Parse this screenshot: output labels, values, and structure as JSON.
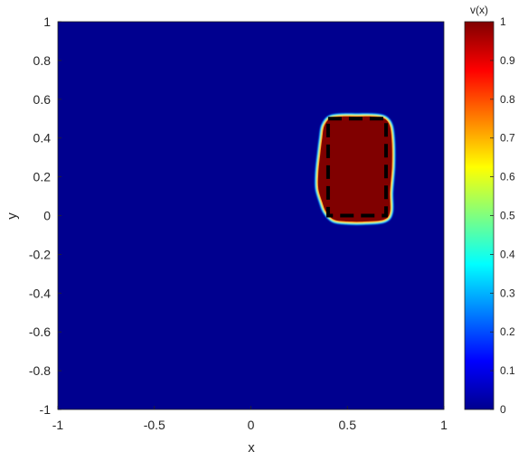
{
  "chart_data": {
    "type": "heatmap",
    "title": "",
    "xlabel": "x",
    "ylabel": "y",
    "xlim": [
      -1,
      1
    ],
    "ylim": [
      -1,
      1
    ],
    "xticks": [
      -1,
      -0.5,
      0,
      0.5,
      1
    ],
    "xtick_labels": [
      "-1",
      "-0.5",
      "0",
      "0.5",
      "1"
    ],
    "yticks": [
      1,
      0.8,
      0.6,
      0.4,
      0.2,
      0,
      -0.2,
      -0.4,
      -0.6,
      -0.8,
      -1
    ],
    "ytick_labels": [
      "1",
      "0.8",
      "0.6",
      "0.4",
      "0.2",
      "0",
      "-0.2",
      "-0.4",
      "-0.6",
      "-0.8",
      "-1"
    ],
    "colormap": "jet",
    "background_value": 0,
    "region_value": 1,
    "region_boundary": [
      [
        0.37,
        0.4
      ],
      [
        0.38,
        0.46
      ],
      [
        0.41,
        0.5
      ],
      [
        0.47,
        0.51
      ],
      [
        0.55,
        0.51
      ],
      [
        0.63,
        0.51
      ],
      [
        0.69,
        0.5
      ],
      [
        0.72,
        0.46
      ],
      [
        0.73,
        0.37
      ],
      [
        0.73,
        0.25
      ],
      [
        0.72,
        0.12
      ],
      [
        0.72,
        0.02
      ],
      [
        0.69,
        -0.02
      ],
      [
        0.6,
        -0.03
      ],
      [
        0.5,
        -0.03
      ],
      [
        0.43,
        -0.02
      ],
      [
        0.39,
        0.02
      ],
      [
        0.37,
        0.07
      ],
      [
        0.35,
        0.14
      ],
      [
        0.35,
        0.22
      ],
      [
        0.36,
        0.32
      ]
    ],
    "dashed_rectangle": {
      "x": [
        0.4,
        0.7
      ],
      "y": [
        0,
        0.5
      ]
    },
    "colorbar": {
      "title": "v(x)",
      "range": [
        0,
        1
      ],
      "ticks": [
        1,
        0.9,
        0.8,
        0.7,
        0.6,
        0.5,
        0.4,
        0.3,
        0.2,
        0.1,
        0
      ],
      "tick_labels": [
        "1",
        "0.9",
        "0.8",
        "0.7",
        "0.6",
        "0.5",
        "0.4",
        "0.3",
        "0.2",
        "0.1",
        "0"
      ]
    },
    "colors": {
      "background": "#00008f",
      "region": "#800000",
      "dashes": "#000000"
    }
  }
}
